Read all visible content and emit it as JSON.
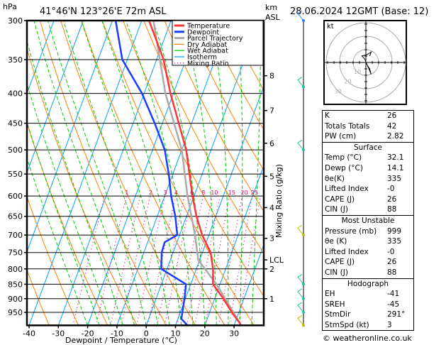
{
  "header": {
    "location": "41°46'N  123°26'E  72m  ASL",
    "datetime": "28.06.2024  12GMT  (Base: 12)",
    "hpa_label": "hPa",
    "km_label": "km",
    "asl_label": "ASL"
  },
  "chart_data": {
    "type": "skew-t",
    "xlabel": "Dewpoint / Temperature (°C)",
    "ylabel": "hPa",
    "right_axis_label": "Mixing Ratio (g/kg)",
    "xlim": [
      -40,
      40
    ],
    "ylim": [
      1000,
      300
    ],
    "x_ticks": [
      -40,
      -30,
      -20,
      -10,
      0,
      10,
      20,
      30
    ],
    "pressure_levels": [
      300,
      350,
      400,
      450,
      500,
      550,
      600,
      650,
      700,
      750,
      800,
      850,
      900,
      950
    ],
    "km_ticks": [
      {
        "label": "1",
        "p": 900
      },
      {
        "label": "2",
        "p": 800
      },
      {
        "label": "LCL",
        "p": 772
      },
      {
        "label": "3",
        "p": 709
      },
      {
        "label": "4",
        "p": 628
      },
      {
        "label": "5",
        "p": 555
      },
      {
        "label": "6",
        "p": 487
      },
      {
        "label": "7",
        "p": 428
      },
      {
        "label": "8",
        "p": 373
      }
    ],
    "mixing_ratio_labels": [
      1,
      2,
      3,
      4,
      6,
      8,
      10,
      15,
      20,
      25
    ],
    "mixing_ratio_label_p": 600,
    "legend": {
      "placement": "top-right",
      "entries": [
        {
          "label": "Temperature",
          "color": "#ff3333",
          "style": "thick"
        },
        {
          "label": "Dewpoint",
          "color": "#1a3cff",
          "style": "thick"
        },
        {
          "label": "Parcel Trajectory",
          "color": "#aaaaaa",
          "style": "thick"
        },
        {
          "label": "Dry Adiabat",
          "color": "#ff8000",
          "style": "thin"
        },
        {
          "label": "Wet Adiabat",
          "color": "#00cc00",
          "style": "thin"
        },
        {
          "label": "Isotherm",
          "color": "#00a0ff",
          "style": "thin"
        },
        {
          "label": "Mixing Ratio",
          "color": "#e0007a",
          "style": "dotted"
        }
      ]
    },
    "series": [
      {
        "name": "Temperature",
        "color": "#ff3333",
        "p": [
          996,
          950,
          900,
          850,
          800,
          750,
          700,
          650,
          600,
          500,
          400,
          350,
          300
        ],
        "t": [
          32.1,
          27.6,
          23.0,
          17.6,
          15.7,
          12.8,
          7.7,
          3.4,
          -0.5,
          -8.5,
          -21.0,
          -27.6,
          -37.5
        ]
      },
      {
        "name": "Dewpoint",
        "color": "#1a3cff",
        "p": [
          1000,
          975,
          950,
          900,
          850,
          800,
          750,
          720,
          700,
          650,
          600,
          550,
          500,
          450,
          400,
          350,
          300
        ],
        "t": [
          14.1,
          11.2,
          10.7,
          9.7,
          8.4,
          -2.0,
          -3.9,
          -4.2,
          -0.8,
          -3.8,
          -7.8,
          -11.4,
          -15.8,
          -22.6,
          -30.7,
          -41.7,
          -48.9
        ]
      },
      {
        "name": "Parcel Trajectory",
        "color": "#aaaaaa",
        "p": [
          996,
          850,
          772,
          700,
          600,
          500,
          400,
          300
        ],
        "t": [
          32.1,
          18.8,
          9.5,
          5.3,
          -2.2,
          -10.0,
          -22.7,
          -36.0
        ]
      }
    ],
    "winds": [
      {
        "p": 300,
        "color": "#2080ff"
      },
      {
        "p": 390,
        "color": "#20c0a0"
      },
      {
        "p": 500,
        "color": "#20c0a0"
      },
      {
        "p": 700,
        "color": "#c0c000"
      },
      {
        "p": 850,
        "color": "#20c0a0"
      },
      {
        "p": 900,
        "color": "#20c0a0"
      },
      {
        "p": 950,
        "color": "#20c0a0"
      },
      {
        "p": 1000,
        "color": "#c0c000"
      }
    ],
    "hodograph": {
      "unit_label": "kt",
      "ring_labels": [
        "10",
        "20",
        "30"
      ],
      "trace": [
        [
          0,
          0
        ],
        [
          2,
          -4
        ],
        [
          4,
          -9
        ],
        [
          3,
          -5
        ],
        [
          1,
          -2
        ],
        [
          -1,
          3
        ],
        [
          -3,
          5
        ],
        [
          1,
          6
        ],
        [
          4,
          8
        ],
        [
          3,
          5
        ]
      ]
    }
  },
  "indices": {
    "general": [
      {
        "label": "K",
        "value": "26"
      },
      {
        "label": "Totals Totals",
        "value": "42"
      },
      {
        "label": "PW (cm)",
        "value": "2.82"
      }
    ],
    "surface": {
      "title": "Surface",
      "rows": [
        {
          "label": "Temp (°C)",
          "value": "32.1"
        },
        {
          "label": "Dewp (°C)",
          "value": "14.1"
        },
        {
          "label": "θe(K)",
          "value": "335"
        },
        {
          "label": "Lifted Index",
          "value": "-0"
        },
        {
          "label": "CAPE (J)",
          "value": "26"
        },
        {
          "label": "CIN (J)",
          "value": "88"
        }
      ]
    },
    "most_unstable": {
      "title": "Most Unstable",
      "rows": [
        {
          "label": "Pressure (mb)",
          "value": "999"
        },
        {
          "label": "θe (K)",
          "value": "335"
        },
        {
          "label": "Lifted Index",
          "value": "-0"
        },
        {
          "label": "CAPE (J)",
          "value": "26"
        },
        {
          "label": "CIN (J)",
          "value": "88"
        }
      ]
    },
    "hodograph": {
      "title": "Hodograph",
      "rows": [
        {
          "label": "EH",
          "value": "-41"
        },
        {
          "label": "SREH",
          "value": "-45"
        },
        {
          "label": "StmDir",
          "value": "291°"
        },
        {
          "label": "StmSpd (kt)",
          "value": "3"
        }
      ]
    }
  },
  "footer": "© weatheronline.co.uk"
}
